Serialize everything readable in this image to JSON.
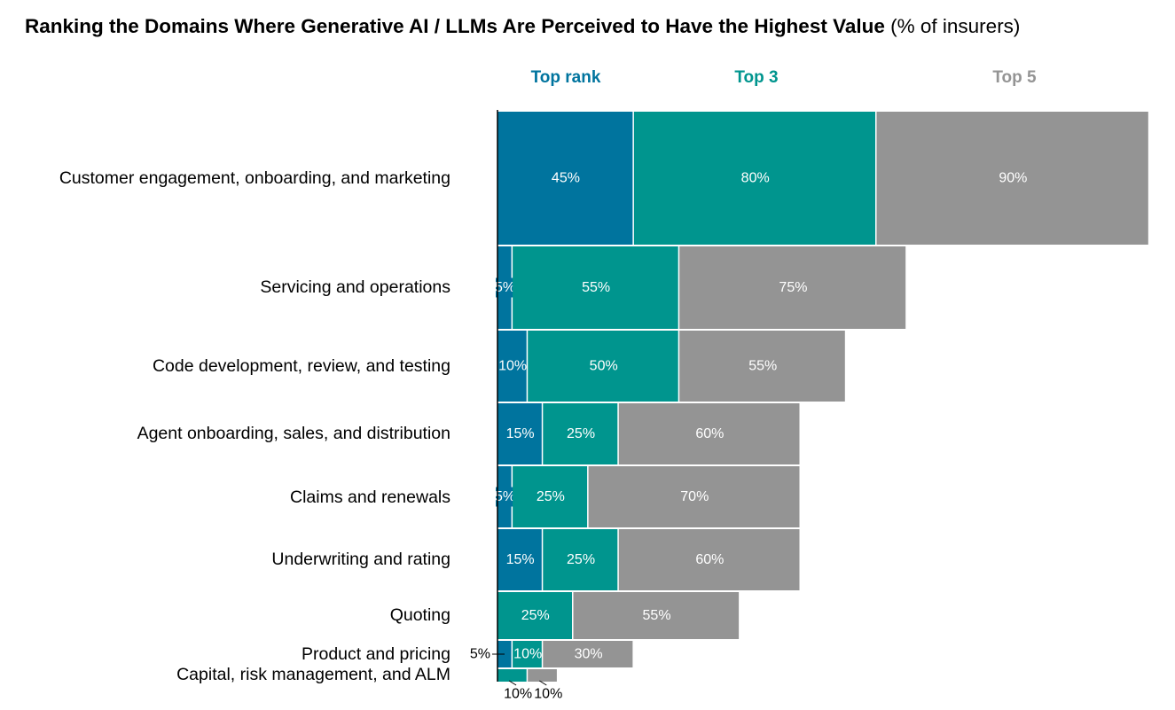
{
  "chart_data": {
    "type": "bar",
    "subtype": "stacked-horizontal",
    "title": "Ranking the Domains Where Generative AI / LLMs Are Perceived to Have the Highest Value",
    "title_suffix": "(% of insurers)",
    "xlabel": "",
    "ylabel": "",
    "unit": "%",
    "grid": false,
    "legend_placement": "top",
    "series": [
      {
        "name": "Top rank",
        "color": "#00749E",
        "values": [
          45,
          5,
          10,
          15,
          5,
          15,
          0,
          5,
          0
        ]
      },
      {
        "name": "Top 3",
        "color": "#00958E",
        "values": [
          80,
          55,
          50,
          25,
          25,
          25,
          25,
          10,
          10
        ]
      },
      {
        "name": "Top 5",
        "color": "#949494",
        "values": [
          90,
          75,
          55,
          60,
          70,
          60,
          55,
          30,
          10
        ]
      }
    ],
    "categories": [
      "Customer engagement, onboarding, and marketing",
      "Servicing and operations",
      "Code development, review, and testing",
      "Agent onboarding, sales, and distribution",
      "Claims and renewals",
      "Underwriting and rating",
      "Quoting",
      "Product and pricing",
      "Capital, risk management, and ALM"
    ],
    "data_labels": [
      [
        "45%",
        "80%",
        "90%"
      ],
      [
        "5%",
        "55%",
        "75%"
      ],
      [
        "10%",
        "50%",
        "55%"
      ],
      [
        "15%",
        "25%",
        "60%"
      ],
      [
        "5%",
        "25%",
        "70%"
      ],
      [
        "15%",
        "25%",
        "60%"
      ],
      [
        "",
        "25%",
        "55%"
      ],
      [
        "5%",
        "10%",
        "30%"
      ],
      [
        "",
        "10%",
        "10%"
      ]
    ]
  }
}
